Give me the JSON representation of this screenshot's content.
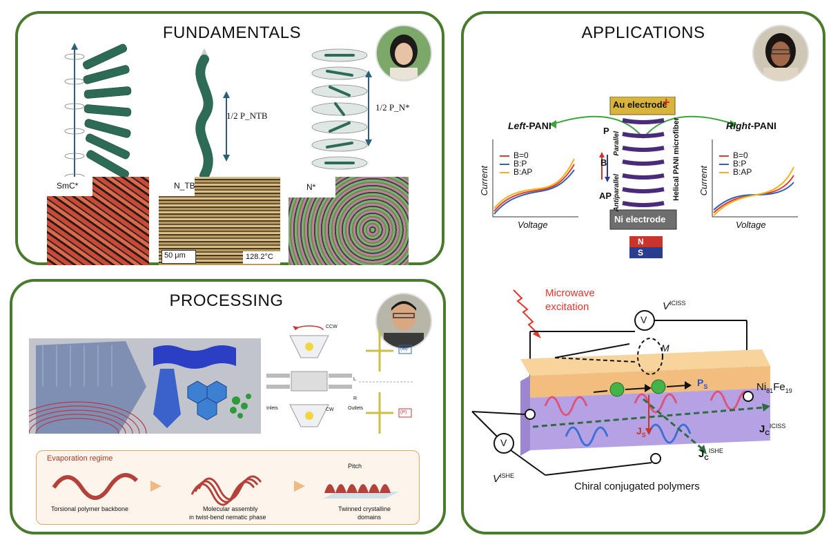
{
  "fundamentals": {
    "title": "FUNDAMENTALS",
    "phases": [
      "SmC*",
      "N_TB",
      "N*"
    ],
    "pitch_tb": "1/2 P_NTB",
    "pitch_n": "1/2 P_N*",
    "scale_bar": "50 μm",
    "temperature": "128.2°C"
  },
  "processing": {
    "title": "PROCESSING",
    "ccw": "CCW",
    "cw": "CW",
    "inlets": "Inlets",
    "outlets": "Outlets",
    "L": "L",
    "R": "R",
    "M_label": "(M)",
    "P_label": "(P)",
    "evaporation": "Evaporation regime",
    "pitch": "Pitch",
    "stage1": "Torsional polymer backbone",
    "stage2_line1": "Molecular assembly",
    "stage2_line2": "in twist-bend nematic phase",
    "stage3_line1": "Twinned crystalline",
    "stage3_line2": "domains"
  },
  "applications": {
    "title": "APPLICATIONS",
    "au_electrode": "Au electrode",
    "ni_electrode": "Ni electrode",
    "fiber_label": "Helical PANI microfiber",
    "parallel": "Parallel",
    "antiparallel": "Antiparallel",
    "P": "P",
    "B": "B",
    "AP": "AP",
    "N": "N",
    "S": "S",
    "left_title_italic": "Left",
    "left_title_rest": "-PANI",
    "right_title_italic": "Right",
    "right_title_rest": "-PANI",
    "current": "Current",
    "voltage": "Voltage",
    "legend": [
      "B=0",
      "B:P",
      "B:AP"
    ],
    "legend_colors": [
      "#e53a2f",
      "#2f63b0",
      "#f2b21c"
    ],
    "microwave_line1": "Microwave",
    "microwave_line2": "excitation",
    "v_iciss": "V",
    "v_iciss_sup": "ICISS",
    "v_ishe": "V",
    "v_ishe_sup": "ISHE",
    "V_circle": "V",
    "M": "M",
    "Ps": "P",
    "Ps_sub": "S",
    "Js": "J",
    "Js_sub": "S",
    "ni_fe": "Ni",
    "ni_fe_81": "81",
    "ni_fe_fe": "Fe",
    "ni_fe_19": "19",
    "jc_iciss": "J",
    "jc_iciss_sub": "C",
    "jc_iciss_sup": "ICISS",
    "jc_ishe": "J",
    "jc_ishe_sub": "C",
    "jc_ishe_sup": "ISHE",
    "chiral": "Chiral conjugated polymers"
  }
}
